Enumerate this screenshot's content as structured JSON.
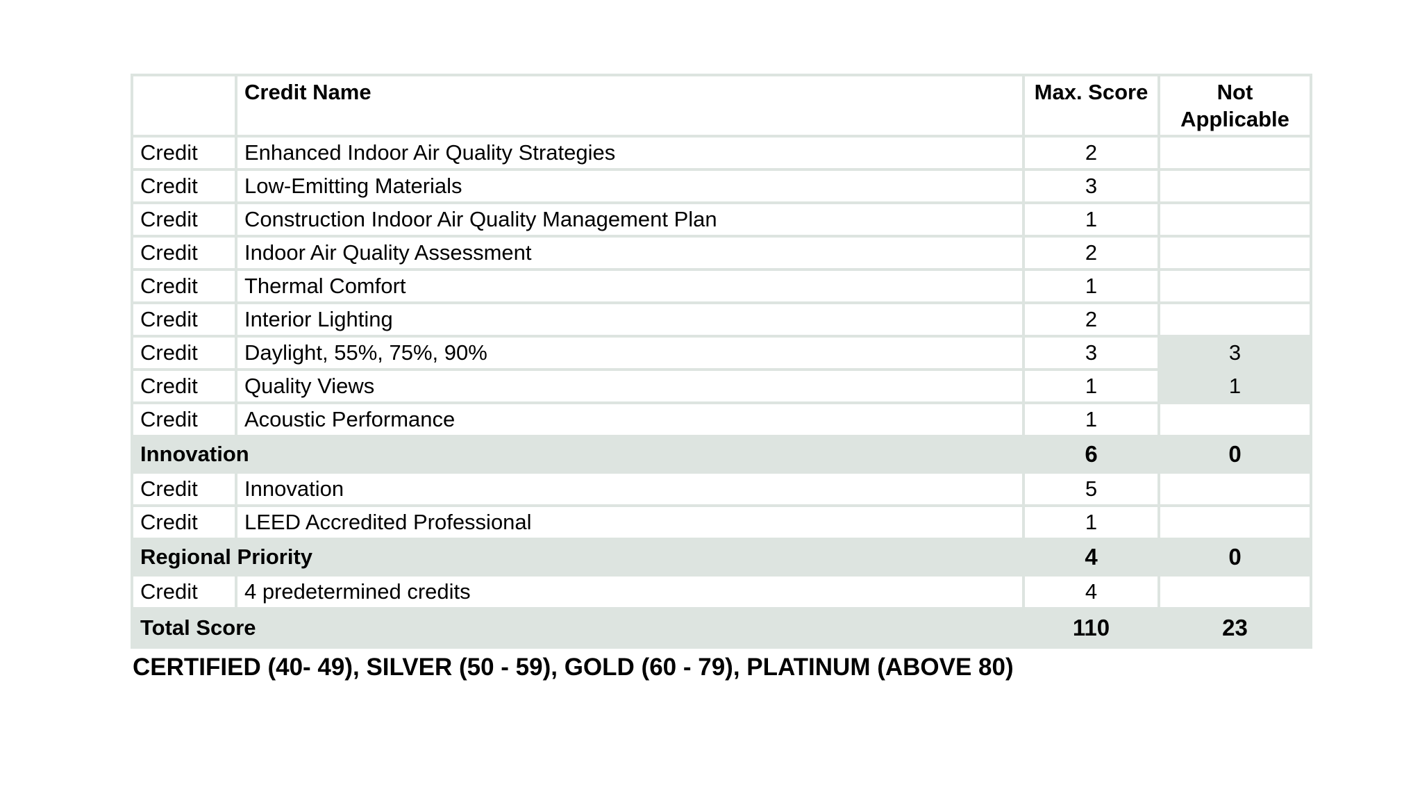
{
  "colors": {
    "shade": "#dde4e0",
    "grid_line": "#dde4e0",
    "text": "#000000",
    "background": "#ffffff"
  },
  "table": {
    "header": {
      "credit_name": "Credit Name",
      "max_score": "Max. Score",
      "not_applicable": "Not Applicable"
    },
    "rows": [
      {
        "type": "credit",
        "label": "Credit",
        "name": "Enhanced Indoor Air Quality Strategies",
        "max": "2",
        "na": ""
      },
      {
        "type": "credit",
        "label": "Credit",
        "name": "Low-Emitting Materials",
        "max": "3",
        "na": ""
      },
      {
        "type": "credit",
        "label": "Credit",
        "name": "Construction Indoor Air Quality Management Plan",
        "max": "1",
        "na": ""
      },
      {
        "type": "credit",
        "label": "Credit",
        "name": "Indoor Air Quality Assessment",
        "max": "2",
        "na": ""
      },
      {
        "type": "credit",
        "label": "Credit",
        "name": "Thermal Comfort",
        "max": "1",
        "na": ""
      },
      {
        "type": "credit",
        "label": "Credit",
        "name": "Interior Lighting",
        "max": "2",
        "na": ""
      },
      {
        "type": "credit",
        "label": "Credit",
        "name": "Daylight, 55%, 75%, 90%",
        "max": "3",
        "na": "3",
        "na_shaded": true
      },
      {
        "type": "credit",
        "label": "Credit",
        "name": "Quality Views",
        "max": "1",
        "na": "1",
        "na_shaded": true
      },
      {
        "type": "credit",
        "label": "Credit",
        "name": "Acoustic Performance",
        "max": "1",
        "na": ""
      },
      {
        "type": "section",
        "name": "Innovation",
        "max": "6",
        "na": "0"
      },
      {
        "type": "credit",
        "label": "Credit",
        "name": "Innovation",
        "max": "5",
        "na": ""
      },
      {
        "type": "credit",
        "label": "Credit",
        "name": "LEED Accredited Professional",
        "max": "1",
        "na": ""
      },
      {
        "type": "section",
        "name": "Regional Priority",
        "max": "4",
        "na": "0"
      },
      {
        "type": "credit",
        "label": "Credit",
        "name": "4 predetermined credits",
        "max": "4",
        "na": ""
      },
      {
        "type": "total",
        "name": "Total Score",
        "max": "110",
        "na": "23"
      }
    ],
    "note": "CERTIFIED (40- 49), SILVER (50 - 59), GOLD (60 - 79), PLATINUM (ABOVE 80)"
  },
  "chart_data": {
    "type": "table",
    "title": "LEED credit scorecard",
    "columns": [
      "",
      "Credit Name",
      "Max. Score",
      "Not Applicable"
    ],
    "rows": [
      [
        "Credit",
        "Enhanced Indoor Air Quality Strategies",
        2,
        null
      ],
      [
        "Credit",
        "Low-Emitting Materials",
        3,
        null
      ],
      [
        "Credit",
        "Construction Indoor Air Quality Management Plan",
        1,
        null
      ],
      [
        "Credit",
        "Indoor Air Quality Assessment",
        2,
        null
      ],
      [
        "Credit",
        "Thermal Comfort",
        1,
        null
      ],
      [
        "Credit",
        "Interior Lighting",
        2,
        null
      ],
      [
        "Credit",
        "Daylight, 55%, 75%, 90%",
        3,
        3
      ],
      [
        "Credit",
        "Quality Views",
        1,
        1
      ],
      [
        "Credit",
        "Acoustic Performance",
        1,
        null
      ],
      [
        "Innovation",
        "",
        6,
        0
      ],
      [
        "Credit",
        "Innovation",
        5,
        null
      ],
      [
        "Credit",
        "LEED Accredited Professional",
        1,
        null
      ],
      [
        "Regional Priority",
        "",
        4,
        0
      ],
      [
        "Credit",
        "4 predetermined credits",
        4,
        null
      ],
      [
        "Total Score",
        "",
        110,
        23
      ]
    ]
  }
}
